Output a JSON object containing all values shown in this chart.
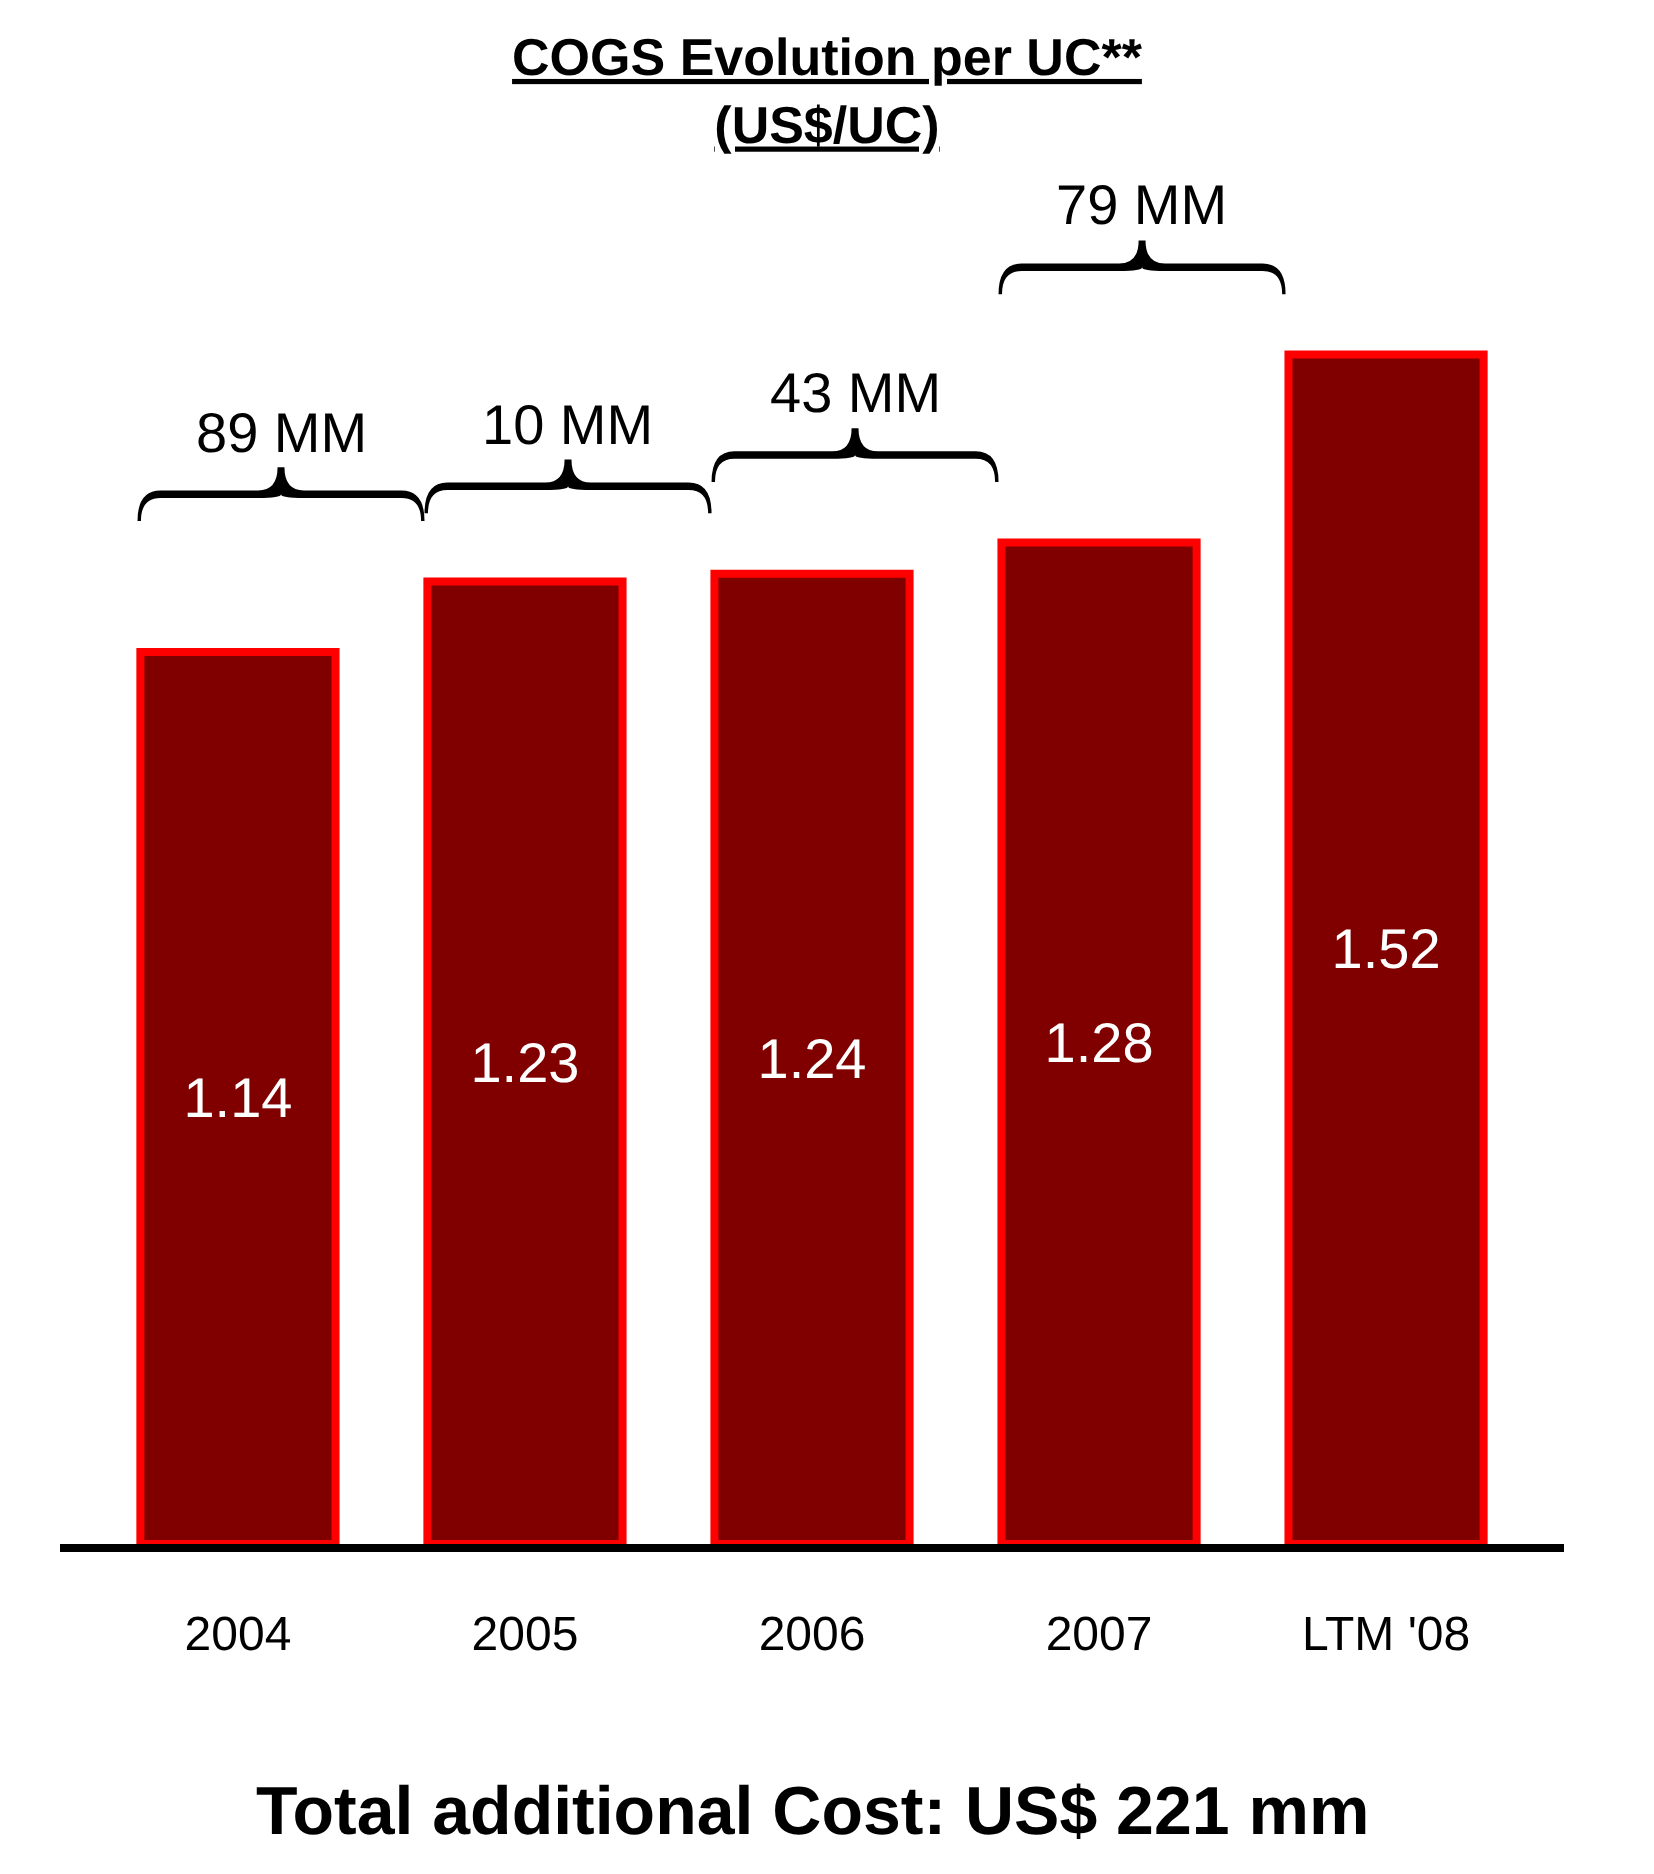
{
  "chart_data": {
    "type": "bar",
    "title": "COGS Evolution per UC**\n(US$/UC)",
    "categories": [
      "2004",
      "2005",
      "2006",
      "2007",
      "LTM '08"
    ],
    "values": [
      1.14,
      1.23,
      1.24,
      1.28,
      1.52
    ],
    "color": "#800000",
    "data_labels": true,
    "annotations": [
      "89 MM",
      "10 MM",
      "43 MM",
      "79 MM",
      "Total additional Cost: US$ 221 mm"
    ]
  }
}
